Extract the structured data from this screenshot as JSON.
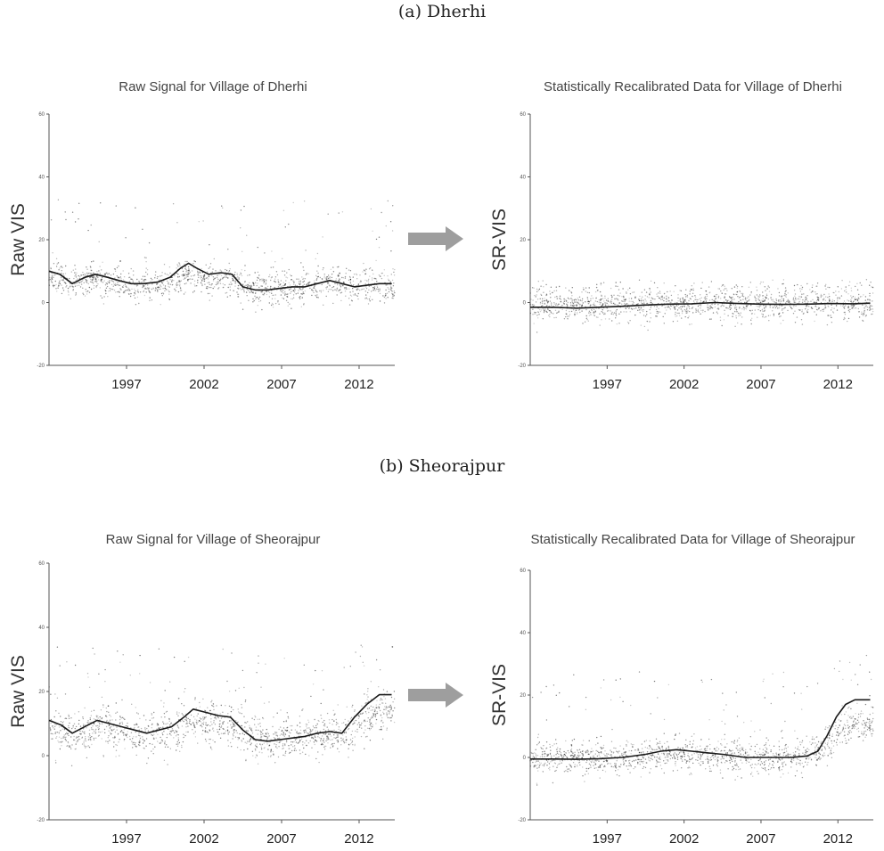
{
  "figure": {
    "sections": [
      {
        "caption": "(a) Dherhi"
      },
      {
        "caption": "(b) Sheorajpur"
      }
    ]
  },
  "chart_data": [
    {
      "type": "scatter",
      "title": "Raw Signal for Village of Dherhi",
      "ylabel": "Raw VIS",
      "xlabel": "",
      "xlim": [
        1992.5,
        2014.8
      ],
      "ylim": [
        -20,
        60
      ],
      "xticks": [
        "1997",
        "2002",
        "2007",
        "2012"
      ],
      "yticks": [
        "-20",
        "0",
        "20",
        "40",
        "60"
      ],
      "grid": false,
      "points": {
        "base": 5,
        "spread": 4,
        "outlier_max": 60,
        "description_free": true
      },
      "series": [
        {
          "values_x": [
            1992.5,
            1993.2,
            1994.0,
            1994.8,
            1995.5,
            1996.3,
            1997.0,
            1997.8,
            1998.6,
            1999.5,
            2000.3,
            2001.0,
            2001.5,
            2002.0,
            2002.8,
            2003.6,
            2004.3,
            2005.0,
            2005.8,
            2006.6,
            2007.4,
            2008.2,
            2009.0,
            2009.8,
            2010.6,
            2011.4,
            2012.2,
            2013.0,
            2013.8,
            2014.6
          ],
          "values_y": [
            10,
            9,
            6,
            8,
            9,
            8,
            7,
            6,
            6,
            6.5,
            8,
            11,
            12.5,
            11,
            9,
            9.5,
            9,
            5,
            4,
            4,
            4.5,
            5,
            5,
            6,
            7,
            6,
            5,
            5.5,
            6,
            6
          ]
        }
      ]
    },
    {
      "type": "scatter",
      "title": "Statistically Recalibrated Data for Village of Dherhi",
      "ylabel": "SR-VIS",
      "xlabel": "",
      "xlim": [
        1992.5,
        2014.8
      ],
      "ylim": [
        -20,
        60
      ],
      "xticks": [
        "1997",
        "2002",
        "2007",
        "2012"
      ],
      "yticks": [
        "-20",
        "0",
        "20",
        "40",
        "60"
      ],
      "grid": false,
      "points": {
        "base": 0,
        "spread": 4,
        "outlier_max": 15
      },
      "series": [
        {
          "values_x": [
            1992.5,
            1994.0,
            1995.5,
            1997.0,
            1998.5,
            2000.0,
            2001.5,
            2003.0,
            2004.5,
            2006.0,
            2007.5,
            2009.0,
            2010.5,
            2012.0,
            2013.5,
            2014.6
          ],
          "values_y": [
            -1.5,
            -1.5,
            -1.8,
            -1.5,
            -1.2,
            -0.8,
            -0.5,
            -0.4,
            0,
            -0.3,
            -0.5,
            -0.6,
            -0.5,
            -0.3,
            -0.4,
            -0.2
          ]
        }
      ]
    },
    {
      "type": "scatter",
      "title": "Raw Signal for Village of Sheorajpur",
      "ylabel": "Raw VIS",
      "xlabel": "",
      "xlim": [
        1992.5,
        2014.8
      ],
      "ylim": [
        -20,
        60
      ],
      "xticks": [
        "1997",
        "2002",
        "2007",
        "2012"
      ],
      "yticks": [
        "-20",
        "0",
        "20",
        "40",
        "60"
      ],
      "grid": false,
      "points": {
        "base": 6,
        "spread": 5,
        "outlier_max": 60
      },
      "series": [
        {
          "values_x": [
            1992.5,
            1993.3,
            1994.0,
            1994.8,
            1995.6,
            1996.4,
            1997.2,
            1998.0,
            1998.8,
            1999.6,
            2000.4,
            2001.2,
            2001.8,
            2002.6,
            2003.4,
            2004.2,
            2005.0,
            2005.8,
            2006.6,
            2007.4,
            2008.2,
            2009.0,
            2009.8,
            2010.6,
            2011.4,
            2012.2,
            2013.0,
            2013.8,
            2014.6
          ],
          "values_y": [
            11,
            9.5,
            7,
            9,
            11,
            10,
            9,
            8,
            7,
            8,
            9,
            12,
            14.5,
            13.5,
            12.5,
            12,
            8,
            5,
            4.5,
            5,
            5.5,
            6,
            7,
            7.5,
            7,
            12,
            16,
            19,
            19
          ]
        }
      ]
    },
    {
      "type": "scatter",
      "title": "Statistically Recalibrated Data for Village of Sheorajpur",
      "ylabel": "SR-VIS",
      "xlabel": "",
      "xlim": [
        1992.5,
        2014.8
      ],
      "ylim": [
        -20,
        60
      ],
      "xticks": [
        "1997",
        "2002",
        "2007",
        "2012"
      ],
      "yticks": [
        "-20",
        "0",
        "20",
        "40",
        "60"
      ],
      "grid": false,
      "points": {
        "base": 0,
        "spread": 4,
        "outlier_max": 55
      },
      "series": [
        {
          "values_x": [
            1992.5,
            1994.0,
            1995.5,
            1997.0,
            1998.5,
            2000.0,
            2001.0,
            2002.0,
            2003.0,
            2004.0,
            2005.0,
            2006.5,
            2008.0,
            2009.5,
            2010.5,
            2011.2,
            2011.8,
            2012.4,
            2013.0,
            2013.6,
            2014.6
          ],
          "values_y": [
            -0.5,
            -0.5,
            -0.6,
            -0.4,
            0,
            1,
            2,
            2.5,
            2,
            1.5,
            1,
            0,
            0,
            0,
            0.5,
            2,
            7,
            13,
            17,
            18.5,
            18.5
          ]
        }
      ]
    }
  ],
  "colors": {
    "axis": "#555555",
    "line": "#1a1a1a",
    "points": "#000000",
    "arrow": "#9e9e9e"
  }
}
